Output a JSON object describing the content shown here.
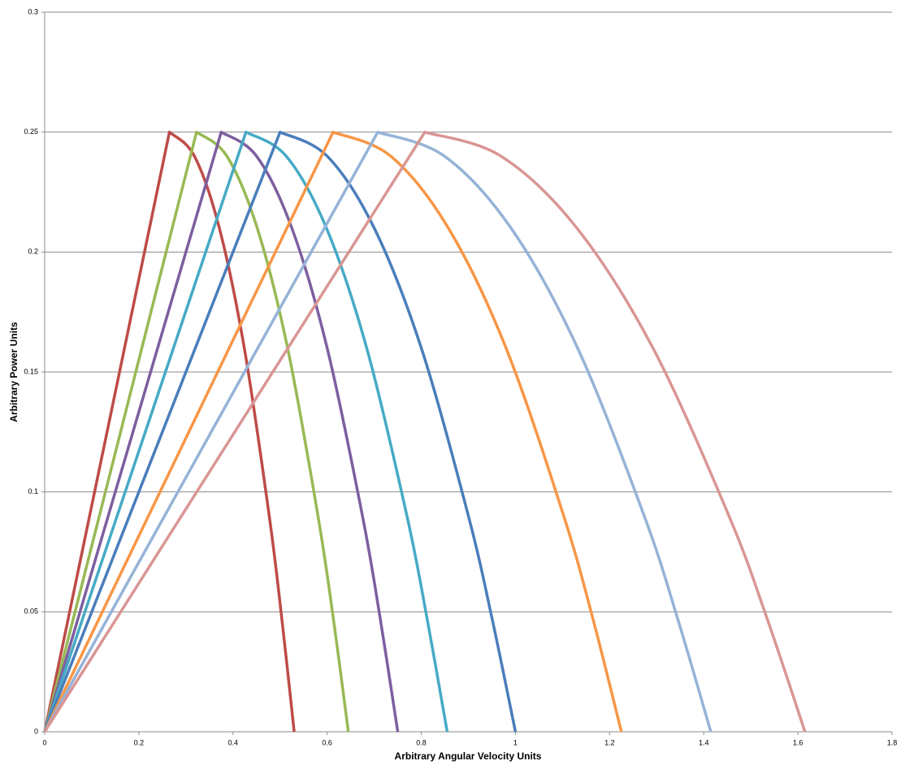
{
  "chart_data": {
    "type": "line",
    "x_label": "Arbitrary Angular Velocity Units",
    "y_label": "Arbitrary Power Units",
    "xlim": [
      0,
      1.8
    ],
    "xticks": [
      0,
      0.2,
      0.4,
      0.6,
      0.8,
      1,
      1.2,
      1.4,
      1.6,
      1.8
    ],
    "ylim": [
      0,
      0.3
    ],
    "yticks": [
      0,
      0.05,
      0.1,
      0.15,
      0.2,
      0.25,
      0.3
    ],
    "grid": true,
    "series": [
      {
        "color": "#be4b48",
        "x": [
          0,
          0.265,
          0.318,
          0.371,
          0.424,
          0.477,
          0.5035,
          0.53
        ],
        "values": [
          0,
          0.25,
          0.24,
          0.21,
          0.16,
          0.09,
          0.0475,
          0
        ]
      },
      {
        "color": "#98b954",
        "x": [
          0,
          0.3225,
          0.387,
          0.4515,
          0.516,
          0.5805,
          0.613,
          0.645
        ],
        "values": [
          0,
          0.25,
          0.24,
          0.21,
          0.16,
          0.09,
          0.0475,
          0
        ]
      },
      {
        "color": "#7d5fa0",
        "x": [
          0,
          0.375,
          0.45,
          0.525,
          0.6,
          0.675,
          0.7125,
          0.75
        ],
        "values": [
          0,
          0.25,
          0.24,
          0.21,
          0.16,
          0.09,
          0.0475,
          0
        ]
      },
      {
        "color": "#46aac5",
        "x": [
          0,
          0.4275,
          0.513,
          0.5985,
          0.684,
          0.7695,
          0.812,
          0.855
        ],
        "values": [
          0,
          0.25,
          0.24,
          0.21,
          0.16,
          0.09,
          0.0475,
          0
        ]
      },
      {
        "color": "#4a7ebb",
        "x": [
          0,
          0.5,
          0.6,
          0.7,
          0.8,
          0.9,
          0.95,
          1
        ],
        "values": [
          0,
          0.25,
          0.24,
          0.21,
          0.16,
          0.09,
          0.0475,
          0
        ]
      },
      {
        "color": "#f79646",
        "x": [
          0,
          0.6125,
          0.735,
          0.8575,
          0.98,
          1.1025,
          1.164,
          1.225
        ],
        "values": [
          0,
          0.25,
          0.24,
          0.21,
          0.16,
          0.09,
          0.0475,
          0
        ]
      },
      {
        "color": "#95b3d7",
        "x": [
          0,
          0.7075,
          0.849,
          0.9905,
          1.132,
          1.2735,
          1.344,
          1.415
        ],
        "values": [
          0,
          0.25,
          0.24,
          0.21,
          0.16,
          0.09,
          0.0475,
          0
        ]
      },
      {
        "color": "#d99694",
        "x": [
          0,
          0.8075,
          0.969,
          1.1305,
          1.292,
          1.4535,
          1.534,
          1.615
        ],
        "values": [
          0,
          0.25,
          0.24,
          0.21,
          0.16,
          0.09,
          0.0475,
          0
        ]
      }
    ]
  }
}
